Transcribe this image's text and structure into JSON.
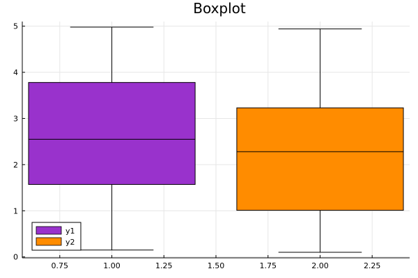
{
  "chart_data": {
    "type": "boxplot",
    "title": "Boxplot",
    "xlabel": "",
    "ylabel": "",
    "xlim": [
      0.57,
      2.43
    ],
    "ylim": [
      -0.02,
      5.1
    ],
    "x_ticks": [
      0.75,
      1.0,
      1.25,
      1.5,
      1.75,
      2.0,
      2.25
    ],
    "x_tick_labels": [
      "0.75",
      "1.00",
      "1.25",
      "1.50",
      "1.75",
      "2.00",
      "2.25"
    ],
    "y_ticks": [
      0,
      1,
      2,
      3,
      4,
      5
    ],
    "y_tick_labels": [
      "0",
      "1",
      "2",
      "3",
      "4",
      "5"
    ],
    "grid": true,
    "legend_position": "bottom-left",
    "series": [
      {
        "name": "y1",
        "color": "#9932cc",
        "x": 1.0,
        "box_halfwidth": 0.4,
        "whisker_halfwidth": 0.2,
        "min": 0.15,
        "q1": 1.57,
        "median": 2.55,
        "q3": 3.78,
        "max": 4.98
      },
      {
        "name": "y2",
        "color": "#ff8c00",
        "x": 2.0,
        "box_halfwidth": 0.4,
        "whisker_halfwidth": 0.2,
        "min": 0.1,
        "q1": 1.01,
        "median": 2.28,
        "q3": 3.23,
        "max": 4.94
      }
    ]
  }
}
